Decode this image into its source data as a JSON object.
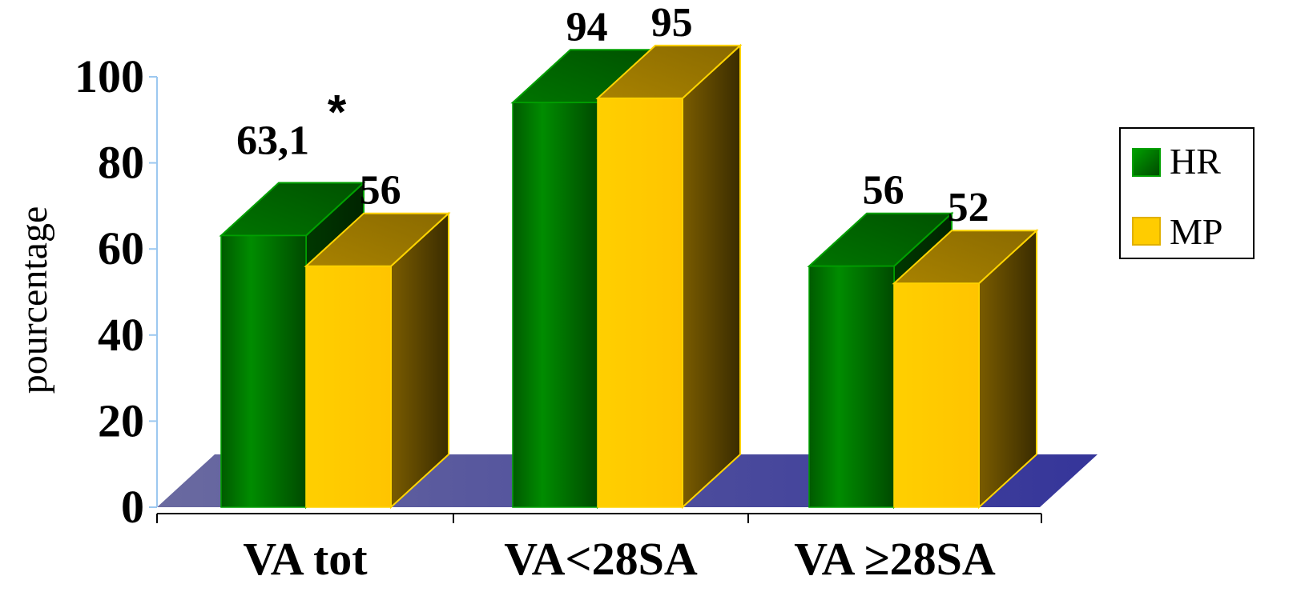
{
  "chart_data": {
    "type": "bar",
    "categories": [
      "VA tot",
      "VA<28SA",
      "VA ≥28SA"
    ],
    "series": [
      {
        "name": "HR",
        "values": [
          63.1,
          94,
          56
        ],
        "labels": [
          "63,1",
          "94",
          "56"
        ],
        "color": "#007a00"
      },
      {
        "name": "MP",
        "values": [
          56,
          95,
          52
        ],
        "labels": [
          "56",
          "95",
          "52"
        ],
        "color": "#ffcc00"
      }
    ],
    "annotations": [
      {
        "series": "HR",
        "category": "VA tot",
        "text": "*"
      }
    ],
    "title": "",
    "xlabel": "",
    "ylabel": "pourcentage",
    "ylim": [
      0,
      100
    ],
    "yticks": [
      0,
      20,
      40,
      60,
      80,
      100
    ],
    "legend": {
      "position": "right"
    },
    "grid": false,
    "floor_color": "#3a3a94",
    "axis_color": "#9cc8f0"
  }
}
